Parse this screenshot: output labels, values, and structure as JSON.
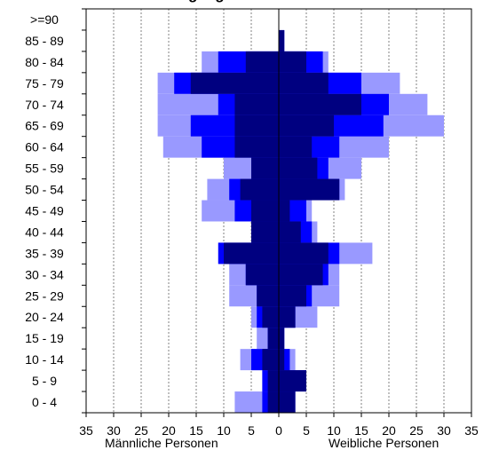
{
  "chart_data": {
    "type": "bar",
    "title": "",
    "title_visible_fragment": "gang",
    "orientation": "horizontal-population-pyramid",
    "categories": [
      ">=90",
      "85 - 89",
      "80 - 84",
      "75 - 79",
      "70 - 74",
      "65 - 69",
      "60 - 64",
      "55 - 59",
      "50 - 54",
      "45 - 49",
      "40 - 44",
      "35 - 39",
      "30 - 34",
      "25 - 29",
      "20 - 24",
      "15 - 19",
      "10 - 14",
      "5 - 9",
      "0 - 4"
    ],
    "x_ticks": [
      "35",
      "30",
      "25",
      "20",
      "15",
      "10",
      "5",
      "0",
      "5",
      "10",
      "15",
      "20",
      "25",
      "30",
      "35"
    ],
    "xlim": [
      -35,
      35
    ],
    "grid": "vertical-dashed",
    "left_label": "Männliche Personen",
    "right_label": "Weibliche Personen",
    "colors": {
      "dark": "#000080",
      "medium": "#0000FF",
      "light": "#9999FF",
      "axis": "#000000",
      "grid": "#808080"
    },
    "series": [
      {
        "male": [
          0,
          0,
          6,
          16,
          8,
          8,
          8,
          5,
          7,
          5,
          5,
          10,
          6,
          4,
          3,
          2,
          3,
          2,
          2
        ],
        "female": [
          0,
          1,
          5,
          9,
          15,
          10,
          6,
          7,
          11,
          2,
          4,
          9,
          8,
          5,
          3,
          1,
          1,
          5,
          3
        ]
      },
      {
        "male": [
          0,
          0,
          11,
          19,
          11,
          16,
          14,
          5,
          9,
          8,
          5,
          11,
          6,
          4,
          4,
          2,
          5,
          3,
          3
        ],
        "female": [
          0,
          1,
          8,
          15,
          20,
          19,
          11,
          9,
          11,
          5,
          6,
          11,
          9,
          6,
          3,
          1,
          2,
          5,
          3
        ]
      },
      {
        "male": [
          0,
          0,
          14,
          22,
          22,
          22,
          21,
          10,
          13,
          14,
          5,
          11,
          9,
          9,
          5,
          4,
          7,
          3,
          8
        ],
        "female": [
          0,
          1,
          9,
          22,
          27,
          30,
          20,
          15,
          12,
          6,
          7,
          17,
          11,
          11,
          7,
          1,
          3,
          5,
          3
        ]
      }
    ]
  }
}
